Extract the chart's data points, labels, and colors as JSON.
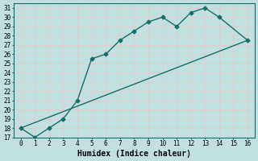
{
  "xlabel": "Humidex (Indice chaleur)",
  "background_color": "#c2e0e0",
  "grid_color": "#e8c8c8",
  "line_color": "#1a6e6a",
  "xlim": [
    -0.5,
    16.5
  ],
  "ylim": [
    17,
    31.5
  ],
  "xticks": [
    0,
    1,
    2,
    3,
    4,
    5,
    6,
    7,
    8,
    9,
    10,
    11,
    12,
    13,
    14,
    15,
    16
  ],
  "yticks": [
    17,
    18,
    19,
    20,
    21,
    22,
    23,
    24,
    25,
    26,
    27,
    28,
    29,
    30,
    31
  ],
  "series1_x": [
    0,
    1,
    2,
    3,
    4,
    5,
    6,
    7,
    8,
    9,
    10,
    11,
    12,
    13,
    14,
    16
  ],
  "series1_y": [
    18,
    17,
    18,
    19,
    21,
    25.5,
    26,
    27.5,
    28.5,
    29.5,
    30,
    29,
    30.5,
    31,
    30,
    27.5
  ],
  "series2_x": [
    0,
    16
  ],
  "series2_y": [
    18,
    27.5
  ],
  "marker": "D",
  "markersize": 2.5,
  "linewidth": 1.0,
  "tick_fontsize": 5.5,
  "xlabel_fontsize": 7,
  "xlabel_fontweight": "bold"
}
